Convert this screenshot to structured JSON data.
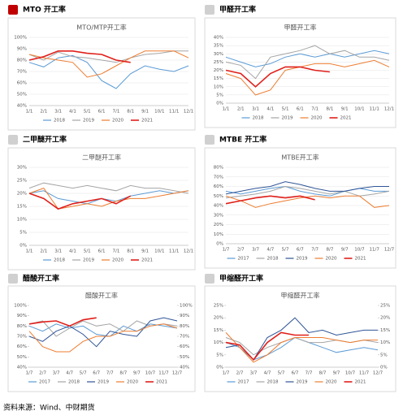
{
  "panel_headers": [
    "MTO 开工率",
    "甲醛开工率",
    "二甲醚开工率",
    "MTBE 开工率",
    "醋酸开工率",
    "甲缩醛开工率"
  ],
  "source": "资料来源：Wind、中财期货",
  "chart_data": [
    {
      "type": "line",
      "title": "MTO/MTP开工率",
      "categories": [
        "1/1",
        "2/1",
        "3/1",
        "4/1",
        "5/1",
        "6/1",
        "7/1",
        "8/1",
        "9/1",
        "10/1",
        "11/1",
        "12/1"
      ],
      "ylim": [
        40,
        100
      ],
      "yticks": [
        {
          "value": 40,
          "label": "40%"
        },
        {
          "value": 50,
          "label": "50%"
        },
        {
          "value": 60,
          "label": "60%"
        },
        {
          "value": 70,
          "label": "70%"
        },
        {
          "value": 80,
          "label": "80%"
        },
        {
          "value": 90,
          "label": "90%"
        },
        {
          "value": 100,
          "label": "100%"
        }
      ],
      "grid": true,
      "series": [
        {
          "name": "2018",
          "color": "#5b9bd5",
          "values": [
            78,
            74,
            82,
            84,
            78,
            62,
            55,
            68,
            75,
            72,
            70,
            75
          ]
        },
        {
          "name": "2019",
          "color": "#a5a5a5",
          "values": [
            85,
            80,
            87,
            83,
            82,
            80,
            78,
            82,
            85,
            86,
            88,
            88
          ]
        },
        {
          "name": "2020",
          "color": "#ed7d31",
          "values": [
            85,
            82,
            80,
            78,
            65,
            68,
            75,
            82,
            88,
            88,
            88,
            82
          ]
        },
        {
          "name": "2021",
          "color": "#e0201b",
          "values": [
            80,
            83,
            88,
            88,
            86,
            85,
            80,
            78,
            null,
            null,
            null,
            null
          ]
        }
      ]
    },
    {
      "type": "line",
      "title": "甲醛开工率",
      "categories": [
        "1/1",
        "2/1",
        "3/1",
        "4/1",
        "5/1",
        "6/1",
        "7/1",
        "8/1",
        "9/1",
        "10/1",
        "11/1",
        "12/1"
      ],
      "ylim": [
        0,
        40
      ],
      "yticks": [
        {
          "value": 0,
          "label": "0%"
        },
        {
          "value": 5,
          "label": "5%"
        },
        {
          "value": 10,
          "label": "10%"
        },
        {
          "value": 15,
          "label": "15%"
        },
        {
          "value": 20,
          "label": "20%"
        },
        {
          "value": 25,
          "label": "25%"
        },
        {
          "value": 30,
          "label": "30%"
        },
        {
          "value": 35,
          "label": "35%"
        },
        {
          "value": 40,
          "label": "40%"
        }
      ],
      "grid": true,
      "series": [
        {
          "name": "2018",
          "color": "#5b9bd5",
          "values": [
            28,
            25,
            22,
            24,
            28,
            30,
            28,
            30,
            28,
            30,
            32,
            30
          ]
        },
        {
          "name": "2019",
          "color": "#a5a5a5",
          "values": [
            25,
            23,
            15,
            28,
            30,
            32,
            35,
            30,
            32,
            28,
            28,
            26
          ]
        },
        {
          "name": "2020",
          "color": "#ed7d31",
          "values": [
            18,
            15,
            5,
            8,
            20,
            22,
            24,
            24,
            22,
            24,
            26,
            22
          ]
        },
        {
          "name": "2021",
          "color": "#e0201b",
          "values": [
            20,
            18,
            10,
            18,
            22,
            22,
            20,
            19,
            null,
            null,
            null,
            null
          ]
        }
      ]
    },
    {
      "type": "line",
      "title": "二甲醚开工率",
      "categories": [
        "1/1",
        "2/1",
        "3/1",
        "4/1",
        "5/1",
        "6/1",
        "7/1",
        "8/1",
        "9/1",
        "10/1",
        "11/1",
        "12/1"
      ],
      "ylim": [
        0,
        30
      ],
      "yticks": [
        {
          "value": 0,
          "label": "0%"
        },
        {
          "value": 5,
          "label": "5%"
        },
        {
          "value": 10,
          "label": "10%"
        },
        {
          "value": 15,
          "label": "15%"
        },
        {
          "value": 20,
          "label": "20%"
        },
        {
          "value": 25,
          "label": "25%"
        },
        {
          "value": 30,
          "label": "30%"
        }
      ],
      "grid": true,
      "series": [
        {
          "name": "2018",
          "color": "#5b9bd5",
          "values": [
            20,
            21,
            18,
            17,
            16,
            18,
            17,
            19,
            20,
            21,
            20,
            21
          ]
        },
        {
          "name": "2019",
          "color": "#a5a5a5",
          "values": [
            22,
            24,
            23,
            22,
            23,
            22,
            21,
            23,
            22,
            22,
            21,
            20
          ]
        },
        {
          "name": "2020",
          "color": "#ed7d31",
          "values": [
            20,
            22,
            14,
            15,
            16,
            15,
            17,
            18,
            18,
            19,
            20,
            21
          ]
        },
        {
          "name": "2021",
          "color": "#e0201b",
          "values": [
            20,
            18,
            14,
            16,
            17,
            18,
            16,
            19,
            null,
            null,
            null,
            null
          ]
        }
      ]
    },
    {
      "type": "line",
      "title": "MTBE开工率",
      "categories": [
        "1/7",
        "2/7",
        "3/7",
        "4/7",
        "5/7",
        "6/7",
        "7/7",
        "8/7",
        "9/7",
        "10/7",
        "11/7",
        "12/7"
      ],
      "ylim": [
        0,
        80
      ],
      "yticks": [
        {
          "value": 0,
          "label": "0%"
        },
        {
          "value": 10,
          "label": "10%"
        },
        {
          "value": 20,
          "label": "20%"
        },
        {
          "value": 30,
          "label": "30%"
        },
        {
          "value": 40,
          "label": "40%"
        },
        {
          "value": 50,
          "label": "50%"
        },
        {
          "value": 60,
          "label": "60%"
        },
        {
          "value": 70,
          "label": "70%"
        },
        {
          "value": 80,
          "label": "80%"
        }
      ],
      "grid": true,
      "series": [
        {
          "name": "2017",
          "color": "#5b9bd5",
          "values": [
            55,
            52,
            55,
            58,
            60,
            55,
            52,
            50,
            55,
            58,
            55,
            55
          ]
        },
        {
          "name": "2018",
          "color": "#a5a5a5",
          "values": [
            48,
            50,
            52,
            55,
            60,
            58,
            55,
            52,
            55,
            50,
            52,
            55
          ]
        },
        {
          "name": "2019",
          "color": "#2f5597",
          "values": [
            52,
            55,
            58,
            60,
            65,
            62,
            58,
            55,
            55,
            58,
            60,
            60
          ]
        },
        {
          "name": "2020",
          "color": "#ed7d31",
          "values": [
            50,
            45,
            38,
            42,
            45,
            48,
            50,
            48,
            50,
            50,
            38,
            40
          ]
        },
        {
          "name": "2021",
          "color": "#e0201b",
          "values": [
            42,
            45,
            48,
            50,
            48,
            50,
            46,
            null,
            null,
            null,
            null,
            null
          ]
        }
      ]
    },
    {
      "type": "line",
      "title": "醋酸开工率",
      "categories": [
        "1/7",
        "2/7",
        "3/7",
        "4/7",
        "5/7",
        "6/7",
        "7/7",
        "8/7",
        "9/7",
        "10/7",
        "11/7",
        "12/7"
      ],
      "ylim": [
        40,
        100
      ],
      "yticks": [
        {
          "value": 40,
          "label": "40%"
        },
        {
          "value": 50,
          "label": "50%"
        },
        {
          "value": 60,
          "label": "60%"
        },
        {
          "value": 70,
          "label": "70%"
        },
        {
          "value": 80,
          "label": "80%"
        },
        {
          "value": 90,
          "label": "90%"
        },
        {
          "value": 100,
          "label": "100%"
        }
      ],
      "y2lim": [
        40,
        100
      ],
      "y2ticks": [
        {
          "value": 40,
          "label": "40%"
        },
        {
          "value": 50,
          "label": "50%"
        },
        {
          "value": 60,
          "label": "60%"
        },
        {
          "value": 70,
          "label": "70%"
        },
        {
          "value": 80,
          "label": "80%"
        },
        {
          "value": 90,
          "label": "90%"
        },
        {
          "value": 100,
          "label": "100%"
        }
      ],
      "grid": false,
      "series": [
        {
          "name": "2017",
          "color": "#5b9bd5",
          "values": [
            80,
            75,
            82,
            78,
            80,
            72,
            70,
            80,
            75,
            82,
            80,
            78
          ]
        },
        {
          "name": "2018",
          "color": "#a5a5a5",
          "values": [
            82,
            85,
            70,
            78,
            85,
            80,
            82,
            75,
            85,
            80,
            82,
            80
          ]
        },
        {
          "name": "2019",
          "color": "#2f5597",
          "values": [
            70,
            65,
            75,
            80,
            72,
            60,
            75,
            72,
            70,
            85,
            88,
            85
          ]
        },
        {
          "name": "2020",
          "color": "#ed7d31",
          "values": [
            75,
            60,
            55,
            55,
            65,
            70,
            70,
            75,
            75,
            80,
            82,
            78
          ]
        },
        {
          "name": "2021",
          "color": "#e0201b",
          "values": [
            82,
            84,
            85,
            80,
            86,
            88,
            null,
            null,
            null,
            null,
            null,
            null
          ]
        }
      ]
    },
    {
      "type": "line",
      "title": "甲缩醛开工率",
      "categories": [
        "1/7",
        "2/7",
        "3/7",
        "4/7",
        "5/7",
        "6/7",
        "7/7",
        "8/7",
        "9/7",
        "10/7",
        "11/7",
        "12/7"
      ],
      "ylim": [
        0,
        25
      ],
      "yticks": [
        {
          "value": 0,
          "label": "0%"
        },
        {
          "value": 5,
          "label": "5%"
        },
        {
          "value": 10,
          "label": "10%"
        },
        {
          "value": 15,
          "label": "15%"
        },
        {
          "value": 20,
          "label": "20%"
        },
        {
          "value": 25,
          "label": "25%"
        }
      ],
      "y2lim": [
        0,
        25
      ],
      "y2ticks": [
        {
          "value": 0,
          "label": "0%"
        },
        {
          "value": 5,
          "label": "5%"
        },
        {
          "value": 10,
          "label": "10%"
        },
        {
          "value": 15,
          "label": "15%"
        },
        {
          "value": 20,
          "label": "20%"
        },
        {
          "value": 25,
          "label": "25%"
        }
      ],
      "grid": false,
      "series": [
        {
          "name": "2017",
          "color": "#5b9bd5",
          "values": [
            10,
            8,
            3,
            5,
            8,
            12,
            10,
            8,
            6,
            7,
            8,
            7
          ]
        },
        {
          "name": "2018",
          "color": "#a5a5a5",
          "values": [
            12,
            10,
            5,
            8,
            10,
            12,
            10,
            10,
            11,
            10,
            11,
            10
          ]
        },
        {
          "name": "2019",
          "color": "#2f5597",
          "values": [
            8,
            9,
            3,
            12,
            15,
            20,
            14,
            15,
            13,
            14,
            15,
            15
          ]
        },
        {
          "name": "2020",
          "color": "#ed7d31",
          "values": [
            14,
            8,
            2,
            5,
            10,
            12,
            12,
            12,
            11,
            10,
            11,
            11
          ]
        },
        {
          "name": "2021",
          "color": "#e0201b",
          "values": [
            10,
            9,
            3,
            10,
            14,
            13,
            13,
            null,
            null,
            null,
            null,
            null
          ]
        }
      ]
    }
  ]
}
